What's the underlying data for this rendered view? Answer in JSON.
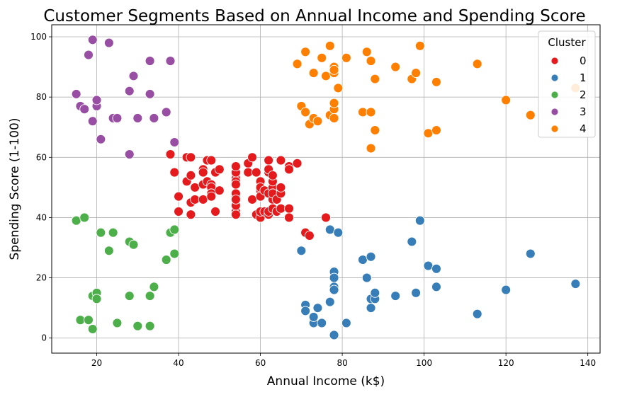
{
  "chart_data": {
    "type": "scatter",
    "title": "Customer Segments Based on Annual Income and Spending Score",
    "xlabel": "Annual Income (k$)",
    "ylabel": "Spending Score (1-100)",
    "xlim": [
      9,
      143
    ],
    "ylim": [
      -5,
      104
    ],
    "xticks": [
      "20",
      "40",
      "60",
      "80",
      "100",
      "120",
      "140"
    ],
    "yticks": [
      "0",
      "20",
      "40",
      "60",
      "80",
      "100"
    ],
    "grid": true,
    "legend": {
      "title": "Cluster",
      "placement": "top-right"
    },
    "series": [
      {
        "name": "0",
        "color": "#e41a1c",
        "points": [
          [
            38,
            61
          ],
          [
            39,
            55
          ],
          [
            40,
            47
          ],
          [
            40,
            42
          ],
          [
            42,
            60
          ],
          [
            42,
            52
          ],
          [
            43,
            60
          ],
          [
            43,
            54
          ],
          [
            43,
            45
          ],
          [
            43,
            41
          ],
          [
            44,
            50
          ],
          [
            44,
            46
          ],
          [
            46,
            51
          ],
          [
            46,
            46
          ],
          [
            46,
            56
          ],
          [
            46,
            55
          ],
          [
            47,
            52
          ],
          [
            47,
            59
          ],
          [
            48,
            51
          ],
          [
            48,
            59
          ],
          [
            48,
            50
          ],
          [
            48,
            48
          ],
          [
            48,
            47
          ],
          [
            49,
            42
          ],
          [
            49,
            55
          ],
          [
            50,
            49
          ],
          [
            50,
            56
          ],
          [
            54,
            47
          ],
          [
            54,
            54
          ],
          [
            54,
            53
          ],
          [
            54,
            48
          ],
          [
            54,
            52
          ],
          [
            54,
            42
          ],
          [
            54,
            51
          ],
          [
            54,
            55
          ],
          [
            54,
            41
          ],
          [
            54,
            44
          ],
          [
            54,
            57
          ],
          [
            54,
            46
          ],
          [
            57,
            58
          ],
          [
            57,
            55
          ],
          [
            58,
            60
          ],
          [
            58,
            46
          ],
          [
            59,
            55
          ],
          [
            59,
            41
          ],
          [
            60,
            49
          ],
          [
            60,
            40
          ],
          [
            60,
            42
          ],
          [
            60,
            52
          ],
          [
            60,
            47
          ],
          [
            60,
            50
          ],
          [
            61,
            42
          ],
          [
            61,
            49
          ],
          [
            62,
            41
          ],
          [
            62,
            48
          ],
          [
            62,
            59
          ],
          [
            62,
            55
          ],
          [
            62,
            56
          ],
          [
            62,
            42
          ],
          [
            63,
            50
          ],
          [
            63,
            46
          ],
          [
            63,
            43
          ],
          [
            63,
            48
          ],
          [
            63,
            52
          ],
          [
            63,
            54
          ],
          [
            64,
            42
          ],
          [
            64,
            46
          ],
          [
            65,
            48
          ],
          [
            65,
            50
          ],
          [
            65,
            43
          ],
          [
            65,
            59
          ],
          [
            67,
            43
          ],
          [
            67,
            57
          ],
          [
            67,
            56
          ],
          [
            67,
            40
          ],
          [
            69,
            58
          ],
          [
            76,
            40
          ],
          [
            71,
            35
          ],
          [
            72,
            34
          ]
        ]
      },
      {
        "name": "1",
        "color": "#377eb8",
        "points": [
          [
            70,
            29
          ],
          [
            71,
            11
          ],
          [
            71,
            9
          ],
          [
            73,
            5
          ],
          [
            73,
            7
          ],
          [
            74,
            10
          ],
          [
            75,
            5
          ],
          [
            77,
            12
          ],
          [
            77,
            36
          ],
          [
            78,
            22
          ],
          [
            78,
            17
          ],
          [
            78,
            20
          ],
          [
            78,
            16
          ],
          [
            78,
            1
          ],
          [
            79,
            35
          ],
          [
            81,
            5
          ],
          [
            85,
            26
          ],
          [
            86,
            20
          ],
          [
            87,
            27
          ],
          [
            87,
            13
          ],
          [
            87,
            10
          ],
          [
            88,
            13
          ],
          [
            88,
            15
          ],
          [
            93,
            14
          ],
          [
            97,
            32
          ],
          [
            98,
            15
          ],
          [
            99,
            39
          ],
          [
            101,
            24
          ],
          [
            103,
            17
          ],
          [
            103,
            23
          ],
          [
            113,
            8
          ],
          [
            120,
            16
          ],
          [
            126,
            28
          ],
          [
            137,
            18
          ]
        ]
      },
      {
        "name": "2",
        "color": "#4daf4a",
        "points": [
          [
            15,
            39
          ],
          [
            16,
            6
          ],
          [
            17,
            40
          ],
          [
            18,
            6
          ],
          [
            19,
            3
          ],
          [
            19,
            14
          ],
          [
            20,
            15
          ],
          [
            20,
            13
          ],
          [
            21,
            35
          ],
          [
            23,
            29
          ],
          [
            24,
            35
          ],
          [
            25,
            5
          ],
          [
            28,
            14
          ],
          [
            28,
            32
          ],
          [
            29,
            31
          ],
          [
            30,
            4
          ],
          [
            33,
            4
          ],
          [
            33,
            14
          ],
          [
            34,
            17
          ],
          [
            37,
            26
          ],
          [
            38,
            35
          ],
          [
            39,
            36
          ],
          [
            39,
            28
          ]
        ]
      },
      {
        "name": "3",
        "color": "#984ea3",
        "points": [
          [
            15,
            81
          ],
          [
            16,
            77
          ],
          [
            17,
            76
          ],
          [
            18,
            94
          ],
          [
            19,
            72
          ],
          [
            19,
            99
          ],
          [
            20,
            77
          ],
          [
            20,
            79
          ],
          [
            21,
            66
          ],
          [
            23,
            98
          ],
          [
            24,
            73
          ],
          [
            25,
            73
          ],
          [
            28,
            82
          ],
          [
            28,
            61
          ],
          [
            29,
            87
          ],
          [
            30,
            73
          ],
          [
            33,
            92
          ],
          [
            33,
            81
          ],
          [
            34,
            73
          ],
          [
            37,
            75
          ],
          [
            38,
            92
          ],
          [
            39,
            65
          ]
        ]
      },
      {
        "name": "4",
        "color": "#ff7f00",
        "points": [
          [
            69,
            91
          ],
          [
            70,
            77
          ],
          [
            71,
            95
          ],
          [
            71,
            75
          ],
          [
            72,
            71
          ],
          [
            73,
            88
          ],
          [
            73,
            73
          ],
          [
            74,
            72
          ],
          [
            75,
            93
          ],
          [
            76,
            87
          ],
          [
            77,
            97
          ],
          [
            77,
            74
          ],
          [
            78,
            90
          ],
          [
            78,
            88
          ],
          [
            78,
            89
          ],
          [
            78,
            76
          ],
          [
            78,
            78
          ],
          [
            78,
            73
          ],
          [
            79,
            83
          ],
          [
            81,
            93
          ],
          [
            85,
            75
          ],
          [
            86,
            95
          ],
          [
            87,
            92
          ],
          [
            87,
            75
          ],
          [
            87,
            63
          ],
          [
            88,
            86
          ],
          [
            88,
            69
          ],
          [
            93,
            90
          ],
          [
            97,
            86
          ],
          [
            98,
            88
          ],
          [
            99,
            97
          ],
          [
            101,
            68
          ],
          [
            103,
            85
          ],
          [
            103,
            69
          ],
          [
            113,
            91
          ],
          [
            120,
            79
          ],
          [
            126,
            74
          ],
          [
            137,
            83
          ]
        ]
      }
    ]
  }
}
